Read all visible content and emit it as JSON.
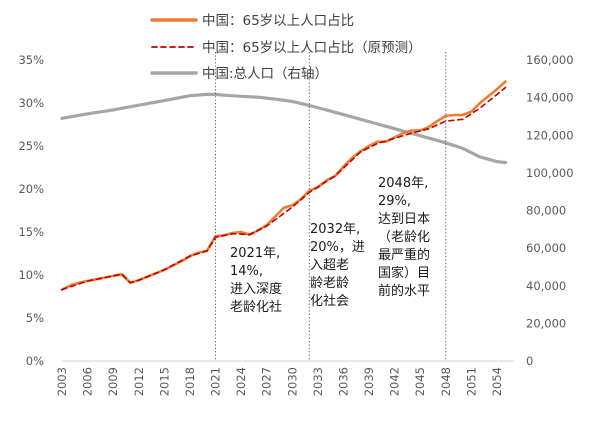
{
  "chart_data": {
    "type": "line",
    "title": "",
    "x_label": "",
    "y_left_label": "",
    "y_right_label": "",
    "x_range": [
      2003,
      2056
    ],
    "x_tick_labels": [
      "2003",
      "2006",
      "2009",
      "2012",
      "2015",
      "2018",
      "2021",
      "2024",
      "2027",
      "2030",
      "2033",
      "2036",
      "2039",
      "2042",
      "2045",
      "2048",
      "2051",
      "2054"
    ],
    "x_tick_values": [
      2003,
      2006,
      2009,
      2012,
      2015,
      2018,
      2021,
      2024,
      2027,
      2030,
      2033,
      2036,
      2039,
      2042,
      2045,
      2048,
      2051,
      2054
    ],
    "y_left": {
      "range": [
        0,
        35
      ],
      "ticks": [
        0,
        5,
        10,
        15,
        20,
        25,
        30,
        35
      ],
      "tick_labels": [
        "0%",
        "5%",
        "10%",
        "15%",
        "20%",
        "25%",
        "30%",
        "35%"
      ]
    },
    "y_right": {
      "range": [
        0,
        160000
      ],
      "ticks": [
        0,
        20000,
        40000,
        60000,
        80000,
        100000,
        120000,
        140000,
        160000
      ],
      "tick_labels": [
        "0",
        "20,000",
        "40,000",
        "60,000",
        "80,000",
        "100,000",
        "120,000",
        "140,000",
        "160,000"
      ]
    },
    "grid": false,
    "legend_position": "top",
    "series": [
      {
        "name": "中国：65岁以上人口占比",
        "axis": "left",
        "color": "#ED7D31",
        "style": "solid",
        "x": [
          2003,
          2004,
          2005,
          2006,
          2007,
          2008,
          2009,
          2010,
          2011,
          2012,
          2013,
          2014,
          2015,
          2016,
          2017,
          2018,
          2019,
          2020,
          2021,
          2022,
          2023,
          2024,
          2025,
          2026,
          2027,
          2028,
          2029,
          2030,
          2031,
          2032,
          2033,
          2034,
          2035,
          2036,
          2037,
          2038,
          2039,
          2040,
          2041,
          2042,
          2043,
          2044,
          2045,
          2046,
          2047,
          2048,
          2049,
          2050,
          2051,
          2052,
          2053,
          2054,
          2055
        ],
        "y": [
          8.3,
          8.8,
          9.1,
          9.3,
          9.5,
          9.7,
          9.9,
          10.1,
          9.1,
          9.4,
          9.8,
          10.2,
          10.6,
          11.1,
          11.6,
          12.2,
          12.6,
          12.8,
          14.5,
          14.6,
          14.9,
          15.0,
          14.7,
          15.2,
          15.8,
          16.8,
          17.8,
          18.1,
          18.8,
          19.8,
          20.2,
          21.0,
          21.5,
          22.6,
          23.6,
          24.4,
          25.0,
          25.5,
          25.5,
          26.0,
          26.5,
          26.8,
          26.8,
          27.2,
          27.9,
          28.5,
          28.6,
          28.6,
          29.0,
          30.0,
          30.8,
          31.6,
          32.5
        ]
      },
      {
        "name": "中国：65岁以上人口占比（原预测）",
        "axis": "left",
        "color": "#C00000",
        "style": "dashed",
        "x": [
          2003,
          2006,
          2009,
          2010,
          2011,
          2012,
          2015,
          2018,
          2020,
          2021,
          2023,
          2025,
          2027,
          2030,
          2032,
          2035,
          2038,
          2040,
          2042,
          2044,
          2046,
          2048,
          2050,
          2052,
          2055
        ],
        "y": [
          8.3,
          9.3,
          9.9,
          10.1,
          9.1,
          9.4,
          10.6,
          12.2,
          12.8,
          14.4,
          14.8,
          14.7,
          15.7,
          17.9,
          19.6,
          21.5,
          24.3,
          25.3,
          25.9,
          26.5,
          27.0,
          27.9,
          28.1,
          29.4,
          31.8
        ]
      },
      {
        "name": "中国:总人口（右轴）",
        "axis": "right",
        "color": "#A6A6A6",
        "style": "solid",
        "x": [
          2003,
          2006,
          2009,
          2012,
          2015,
          2018,
          2020,
          2021,
          2022,
          2024,
          2026,
          2028,
          2030,
          2032,
          2034,
          2036,
          2038,
          2040,
          2042,
          2044,
          2046,
          2048,
          2050,
          2052,
          2054,
          2055
        ],
        "y": [
          129000,
          131400,
          133500,
          136000,
          138400,
          141000,
          141700,
          141700,
          141300,
          140700,
          140200,
          139200,
          138000,
          135800,
          133500,
          131000,
          128500,
          126000,
          123500,
          121000,
          118500,
          116000,
          113000,
          108500,
          106000,
          105500
        ]
      }
    ],
    "vertical_markers": [
      {
        "x": 2021,
        "color": "#2E5FA8",
        "style": "dotted"
      },
      {
        "x": 2032,
        "color": "#2E5FA8",
        "style": "dotted"
      },
      {
        "x": 2048,
        "color": "#2E5FA8",
        "style": "dotted"
      }
    ],
    "annotations": [
      {
        "id": "anno-2021",
        "lines": [
          "2021年,",
          "14%,",
          "进入深度",
          "老龄化社"
        ]
      },
      {
        "id": "anno-2032",
        "lines": [
          "2032年,",
          "20%，进",
          "入超老",
          "龄老龄",
          "化社会"
        ]
      },
      {
        "id": "anno-2048",
        "lines": [
          "2048年,",
          "29%,",
          "达到日本",
          "（老龄化",
          "最严重的",
          "国家）目",
          "前的水平"
        ]
      }
    ]
  }
}
